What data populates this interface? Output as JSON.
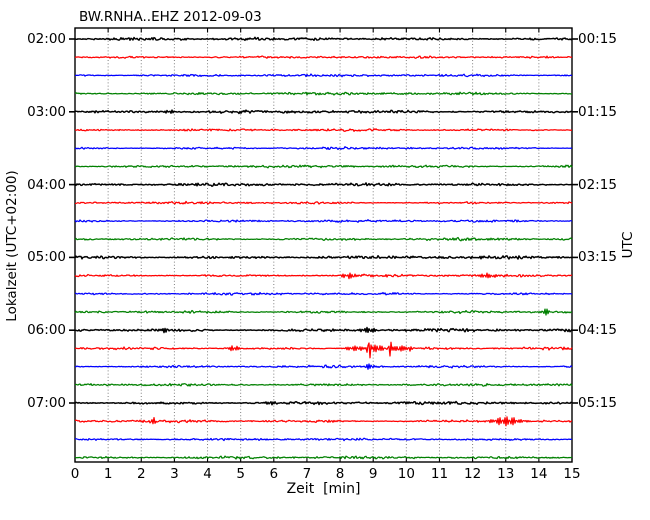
{
  "title": "BW.RNHA..EHZ 2012-09-03",
  "axes": {
    "left_label": "Lokalzeit (UTC+02:00)",
    "right_label": "UTC",
    "x_label": "Zeit  [min]",
    "left_ticks": [
      "02:00",
      "03:00",
      "04:00",
      "05:00",
      "06:00",
      "07:00"
    ],
    "right_ticks": [
      "00:15",
      "01:15",
      "02:15",
      "03:15",
      "04:15",
      "05:15"
    ],
    "x_ticks": [
      "0",
      "1",
      "2",
      "3",
      "4",
      "5",
      "6",
      "7",
      "8",
      "9",
      "10",
      "11",
      "12",
      "13",
      "14",
      "15"
    ]
  },
  "chart_data": {
    "type": "line",
    "subtype": "helicorder-dayplot",
    "title": "BW.RNHA..EHZ 2012-09-03",
    "xlabel": "Zeit  [min]",
    "ylabel_left": "Lokalzeit (UTC+02:00)",
    "ylabel_right": "UTC",
    "x_range_minutes": [
      0,
      15
    ],
    "minutes_per_row": 15,
    "rows": 24,
    "grid": "dotted-vertical-per-minute",
    "color_cycle": [
      "#000000",
      "#ff0000",
      "#0000ff",
      "#008000"
    ],
    "grid_color": "#808080",
    "traces": [
      {
        "local_start": "02:00",
        "color": "#000000",
        "noise_amp": 1.7,
        "events": []
      },
      {
        "local_start": "02:15",
        "color": "#ff0000",
        "noise_amp": 1.35,
        "events": []
      },
      {
        "local_start": "02:30",
        "color": "#0000ff",
        "noise_amp": 1.35,
        "events": []
      },
      {
        "local_start": "02:45",
        "color": "#008000",
        "noise_amp": 1.55,
        "events": []
      },
      {
        "local_start": "03:00",
        "color": "#000000",
        "noise_amp": 1.7,
        "events": [
          {
            "m": 2.9,
            "a": 1.8,
            "w": 0.15
          }
        ]
      },
      {
        "local_start": "03:15",
        "color": "#ff0000",
        "noise_amp": 1.35,
        "events": []
      },
      {
        "local_start": "03:30",
        "color": "#0000ff",
        "noise_amp": 1.35,
        "events": []
      },
      {
        "local_start": "03:45",
        "color": "#008000",
        "noise_amp": 1.55,
        "events": []
      },
      {
        "local_start": "04:00",
        "color": "#000000",
        "noise_amp": 1.7,
        "events": []
      },
      {
        "local_start": "04:15",
        "color": "#ff0000",
        "noise_amp": 1.35,
        "events": []
      },
      {
        "local_start": "04:30",
        "color": "#0000ff",
        "noise_amp": 1.35,
        "events": []
      },
      {
        "local_start": "04:45",
        "color": "#008000",
        "noise_amp": 1.55,
        "events": []
      },
      {
        "local_start": "05:00",
        "color": "#000000",
        "noise_amp": 1.7,
        "events": []
      },
      {
        "local_start": "05:15",
        "color": "#ff0000",
        "noise_amp": 1.4,
        "events": [
          {
            "m": 8.3,
            "a": 2.2,
            "w": 0.3
          },
          {
            "m": 12.5,
            "a": 2.2,
            "w": 0.35
          }
        ]
      },
      {
        "local_start": "05:30",
        "color": "#0000ff",
        "noise_amp": 1.35,
        "events": []
      },
      {
        "local_start": "05:45",
        "color": "#008000",
        "noise_amp": 1.55,
        "events": [
          {
            "m": 14.2,
            "a": 3,
            "w": 0.12
          }
        ]
      },
      {
        "local_start": "06:00",
        "color": "#000000",
        "noise_amp": 1.7,
        "events": [
          {
            "m": 2.7,
            "a": 2.5,
            "w": 0.1
          },
          {
            "m": 8.85,
            "a": 2,
            "w": 0.3
          }
        ]
      },
      {
        "local_start": "06:15",
        "color": "#ff0000",
        "noise_amp": 1.4,
        "events": [
          {
            "m": 4.8,
            "a": 3,
            "w": 0.15
          },
          {
            "m": 8.45,
            "a": 2.5,
            "w": 0.3
          },
          {
            "m": 8.87,
            "a": 23,
            "w": 0.05
          },
          {
            "m": 9.12,
            "a": 4,
            "w": 0.2
          },
          {
            "m": 9.5,
            "a": 14,
            "w": 0.045
          },
          {
            "m": 9.78,
            "a": 3,
            "w": 0.25
          },
          {
            "m": 10.05,
            "a": 3.5,
            "w": 0.1
          }
        ]
      },
      {
        "local_start": "06:30",
        "color": "#0000ff",
        "noise_amp": 1.35,
        "events": [
          {
            "m": 8.9,
            "a": 2,
            "w": 0.2
          }
        ]
      },
      {
        "local_start": "06:45",
        "color": "#008000",
        "noise_amp": 1.55,
        "events": []
      },
      {
        "local_start": "07:00",
        "color": "#000000",
        "noise_amp": 1.7,
        "events": [
          {
            "m": 5.9,
            "a": 2,
            "w": 0.15
          }
        ]
      },
      {
        "local_start": "07:15",
        "color": "#ff0000",
        "noise_amp": 1.6,
        "events": [
          {
            "m": 2.35,
            "a": 4,
            "w": 0.07
          },
          {
            "m": 13.0,
            "a": 4.5,
            "w": 0.4
          }
        ]
      },
      {
        "local_start": "07:30",
        "color": "#0000ff",
        "noise_amp": 1.35,
        "events": []
      },
      {
        "local_start": "07:45",
        "color": "#008000",
        "noise_amp": 1.55,
        "events": []
      }
    ]
  }
}
